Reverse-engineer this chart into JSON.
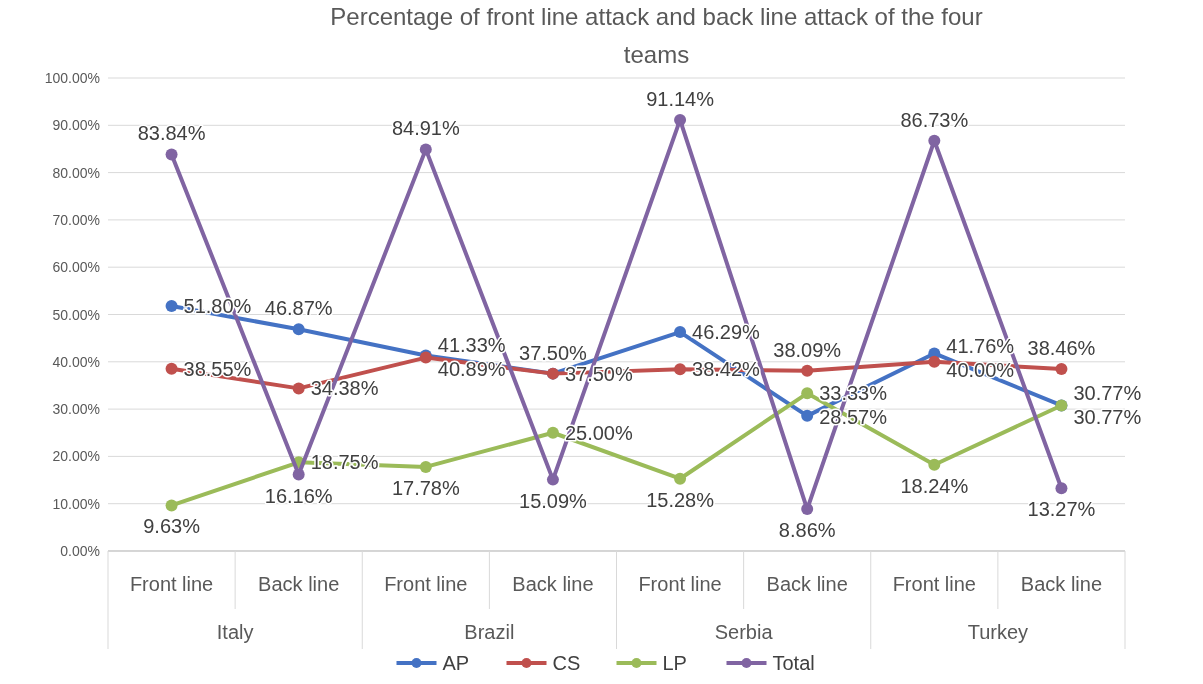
{
  "chart_data": {
    "type": "line",
    "title": "Percentage of front line attack and back line attack of the four teams",
    "categories": [
      "Front line",
      "Back line",
      "Front line",
      "Back line",
      "Front line",
      "Back line",
      "Front line",
      "Back line"
    ],
    "annotations": [
      "Italy",
      "Brazil",
      "Serbia",
      "Turkey"
    ],
    "series": [
      {
        "name": "AP",
        "color": "#4472c4",
        "values": [
          51.8,
          46.87,
          41.33,
          37.5,
          46.29,
          28.57,
          41.76,
          30.77
        ],
        "value_labels": [
          "51.80%",
          "46.87%",
          "41.33%",
          "37.50%",
          "46.29%",
          "28.57%",
          "41.76%",
          "30.77%"
        ]
      },
      {
        "name": "CS",
        "color": "#c0504d",
        "values": [
          38.55,
          34.38,
          40.89,
          37.5,
          38.42,
          38.09,
          40.0,
          38.46
        ],
        "value_labels": [
          "38.55%",
          "34.38%",
          "40.89%",
          "37.50%",
          "38.42%",
          "38.09%",
          "40.00%",
          "38.46%"
        ]
      },
      {
        "name": "LP",
        "color": "#9bbb59",
        "values": [
          9.63,
          18.75,
          17.78,
          25.0,
          15.28,
          33.33,
          18.24,
          30.77
        ],
        "value_labels": [
          "9.63%",
          "18.75%",
          "17.78%",
          "25.00%",
          "15.28%",
          "33.33%",
          "18.24%",
          "30.77%"
        ]
      },
      {
        "name": "Total",
        "color": "#8064a2",
        "values": [
          83.84,
          16.16,
          84.91,
          15.09,
          91.14,
          8.86,
          86.73,
          13.27
        ],
        "value_labels": [
          "83.84%",
          "16.16%",
          "84.91%",
          "15.09%",
          "91.14%",
          "8.86%",
          "86.73%",
          "13.27%"
        ]
      }
    ],
    "ylim": [
      0,
      100
    ],
    "yticks": [
      {
        "value": 0,
        "label": "0.00%"
      },
      {
        "value": 10,
        "label": "10.00%"
      },
      {
        "value": 20,
        "label": "20.00%"
      },
      {
        "value": 30,
        "label": "30.00%"
      },
      {
        "value": 40,
        "label": "40.00%"
      },
      {
        "value": 50,
        "label": "50.00%"
      },
      {
        "value": 60,
        "label": "60.00%"
      },
      {
        "value": 70,
        "label": "70.00%"
      },
      {
        "value": 80,
        "label": "80.00%"
      },
      {
        "value": 90,
        "label": "90.00%"
      },
      {
        "value": 100,
        "label": "100.00%"
      }
    ],
    "grid": "y",
    "legend": "bottom",
    "marker": "circle",
    "line_style": "solid"
  }
}
